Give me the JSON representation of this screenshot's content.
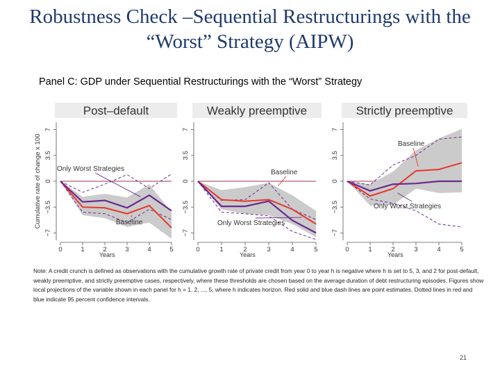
{
  "slide": {
    "title_line1": "Robustness Check –Sequential Restructurings with the",
    "title_line2": "“Worst” Strategy (AIPW)",
    "panel_heading": "Panel C: GDP under Sequential Restructurings with the “Worst” Strategy",
    "note": "Note: A credit crunch is defined as observations with the cumulative growth rate of private credit from year 0 to year h is negative where h is set to 5, 3, and 2 for post-default, weakly preemptive, and strictly preemptive cases, respectively, where these thresholds are chosen based on the average duration of debt restructuring episodes. Figures show local projections of the variable shown in each panel for h = 1, 2, ..., 5, where h indicates horizon. Red solid and blue dash lines are point estimates. Dotted lines in red and blue indicate 95 percent confidence intervals.",
    "page_number": "21"
  },
  "colors": {
    "title": "#1f3a6b",
    "baseline": "#e8362a",
    "worst": "#6b2a8c",
    "band": "#c8c8c8",
    "zero_line": "#a03050",
    "panel_title_bg": "#ececec",
    "panel_title_text": "#5a6f8f"
  },
  "chart_data": [
    {
      "type": "line",
      "title": "Post–default",
      "ylabel": "Cumulative rate of change x 100",
      "xlabel": "Years",
      "x": [
        0,
        1,
        2,
        3,
        4,
        5
      ],
      "xticks": [
        "0",
        "1",
        "2",
        "3",
        "4",
        "5"
      ],
      "yticks": [
        7,
        3.5,
        0,
        -3.5,
        -7
      ],
      "ytick_labels": [
        "7",
        "3.5",
        "0",
        "−3.5",
        "−7"
      ],
      "ylim": [
        -8,
        8
      ],
      "series": [
        {
          "name": "Baseline",
          "style": "solid",
          "role": "point",
          "values": [
            0,
            -3.5,
            -3.6,
            -4.4,
            -3.3,
            -6.3
          ]
        },
        {
          "name": "Only Worst Strategies",
          "style": "solid",
          "role": "point",
          "values": [
            0,
            -2.8,
            -2.6,
            -3.6,
            -1.9,
            -4.0
          ]
        },
        {
          "name": "Baseline 95% CI",
          "style": "band",
          "role": "ci",
          "upper": [
            0,
            -2.1,
            -1.7,
            -2.2,
            -0.4,
            -4.2
          ],
          "lower": [
            0,
            -4.6,
            -5.0,
            -6.2,
            -5.6,
            -7.8
          ]
        },
        {
          "name": "Only Worst Strategies 95% CI upper",
          "style": "dash",
          "role": "ci",
          "values": [
            0,
            -1.5,
            -0.4,
            0.9,
            -1.0,
            1.0
          ]
        },
        {
          "name": "Only Worst Strategies 95% CI lower",
          "style": "dash",
          "role": "ci",
          "values": [
            0,
            -4.2,
            -4.4,
            -5.6,
            -3.8,
            -5.2
          ]
        }
      ],
      "annotations": [
        {
          "text": "Only Worst Strategies",
          "target_x": 3.6,
          "target_y": -2.1
        },
        {
          "text": "Baseline",
          "target_x": 3.2,
          "target_y": -4.6
        }
      ]
    },
    {
      "type": "line",
      "title": "Weakly preemptive",
      "xlabel": "Years",
      "x": [
        0,
        1,
        2,
        3,
        4,
        5
      ],
      "xticks": [
        "0",
        "1",
        "2",
        "3",
        "4",
        "5"
      ],
      "yticks": [
        7,
        3.5,
        0,
        -3.5,
        -7
      ],
      "ytick_labels": [
        "7",
        "3.5",
        "0",
        "−3.5",
        "−7"
      ],
      "ylim": [
        -8,
        8
      ],
      "series": [
        {
          "name": "Baseline",
          "style": "solid",
          "role": "point",
          "values": [
            0,
            -2.5,
            -2.7,
            -2.5,
            -3.8,
            -5.8
          ]
        },
        {
          "name": "Only Worst Strategies",
          "style": "solid",
          "role": "point",
          "values": [
            0,
            -3.4,
            -3.4,
            -2.7,
            -5.3,
            -7.0
          ]
        },
        {
          "name": "Baseline 95% CI",
          "style": "band",
          "role": "ci",
          "upper": [
            0,
            -1.2,
            -0.8,
            -0.2,
            -1.9,
            -4.0
          ],
          "lower": [
            0,
            -3.8,
            -4.4,
            -4.6,
            -5.8,
            -7.6
          ]
        },
        {
          "name": "Only Worst Strategies 95% CI upper",
          "style": "dash",
          "role": "ci",
          "values": [
            0,
            -2.6,
            -2.5,
            -0.2,
            -3.8,
            -5.2
          ]
        },
        {
          "name": "Only Worst Strategies 95% CI lower",
          "style": "dash",
          "role": "ci",
          "values": [
            0,
            -4.2,
            -4.4,
            -4.7,
            -6.8,
            -7.9
          ]
        }
      ],
      "annotations": [
        {
          "text": "Baseline",
          "target_x": 3.4,
          "target_y": -0.6
        },
        {
          "text": "Only Worst Strategies",
          "target_x": 4.4,
          "target_y": -4.9
        }
      ]
    },
    {
      "type": "line",
      "title": "Strictly preemptive",
      "xlabel": "Years",
      "x": [
        0,
        1,
        2,
        3,
        4,
        5
      ],
      "xticks": [
        "0",
        "1",
        "2",
        "3",
        "4",
        "5"
      ],
      "yticks": [
        7,
        3.5,
        0,
        -3.5,
        -7
      ],
      "ytick_labels": [
        "7",
        "3.5",
        "0",
        "−3.5",
        "−7"
      ],
      "ylim": [
        -8,
        8
      ],
      "series": [
        {
          "name": "Baseline",
          "style": "solid",
          "role": "point",
          "values": [
            0,
            -2.0,
            -1.0,
            1.4,
            1.6,
            2.5
          ]
        },
        {
          "name": "Only Worst Strategies",
          "style": "solid",
          "role": "point",
          "values": [
            0,
            -1.3,
            -0.4,
            -0.3,
            0.0,
            0.0
          ]
        },
        {
          "name": "Baseline 95% CI",
          "style": "band",
          "role": "ci",
          "upper": [
            0,
            -0.4,
            1.3,
            4.2,
            5.8,
            7.1
          ],
          "lower": [
            0,
            -3.3,
            -3.2,
            -1.0,
            -1.6,
            -1.5
          ]
        },
        {
          "name": "Only Worst Strategies 95% CI upper",
          "style": "dash",
          "role": "ci",
          "values": [
            0,
            -0.5,
            2.2,
            3.5,
            5.7,
            6.0
          ]
        },
        {
          "name": "Only Worst Strategies 95% CI lower",
          "style": "dash",
          "role": "ci",
          "values": [
            0,
            -2.4,
            -3.0,
            -4.0,
            -5.8,
            -6.2
          ]
        }
      ],
      "annotations": [
        {
          "text": "Baseline",
          "target_x": 3.1,
          "target_y": 2.0
        },
        {
          "text": "Only Worst Strategies",
          "target_x": 2.2,
          "target_y": -1.6
        }
      ]
    }
  ]
}
